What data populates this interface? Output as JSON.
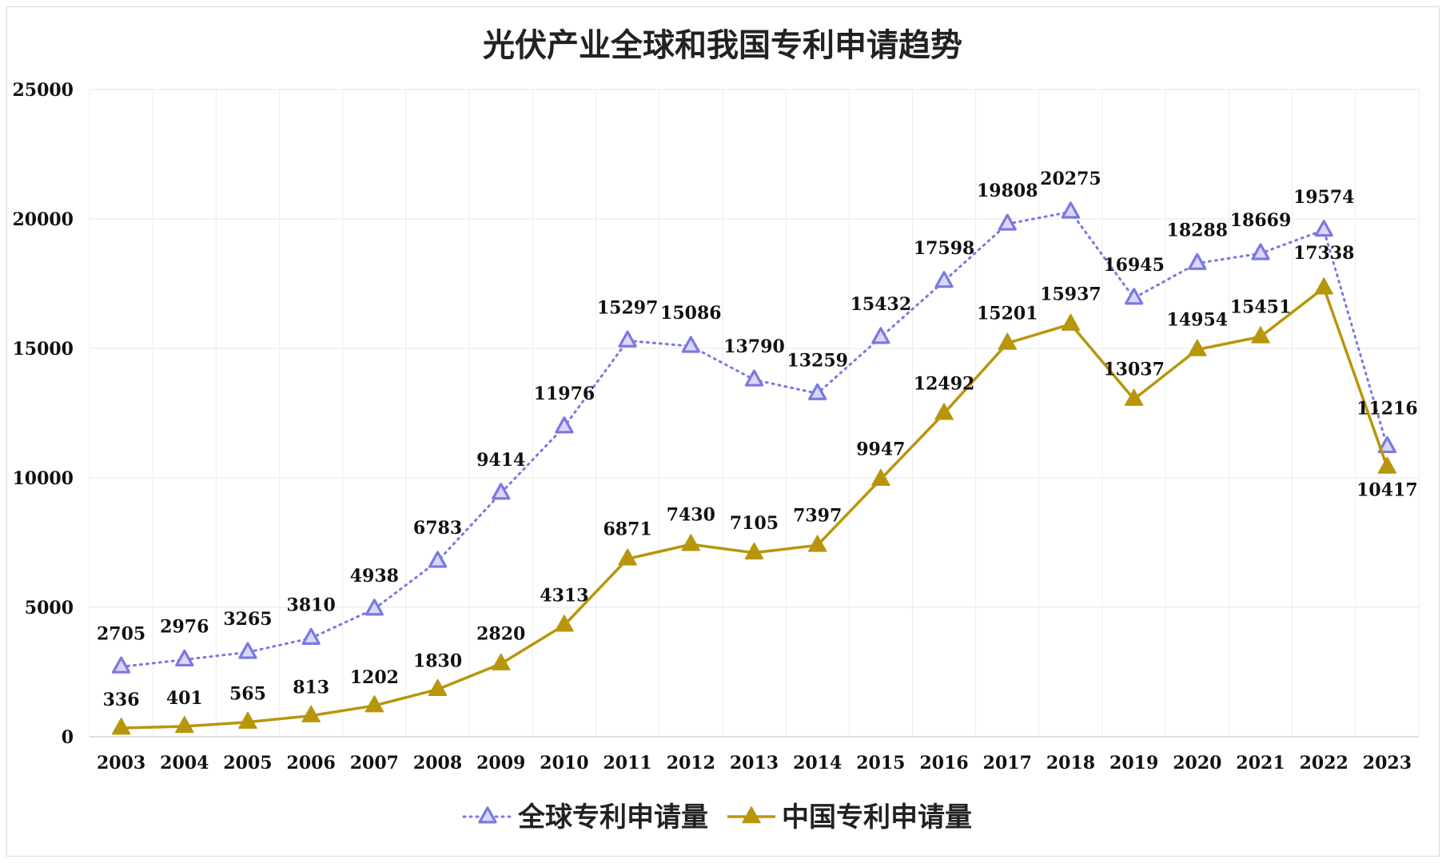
{
  "chart_data": {
    "type": "line",
    "title": "光伏产业全球和我国专利申请趋势",
    "xlabel": "",
    "ylabel": "",
    "categories": [
      "2003",
      "2004",
      "2005",
      "2006",
      "2007",
      "2008",
      "2009",
      "2010",
      "2011",
      "2012",
      "2013",
      "2014",
      "2015",
      "2016",
      "2017",
      "2018",
      "2019",
      "2020",
      "2021",
      "2022",
      "2023"
    ],
    "ylim": [
      0,
      25000
    ],
    "yticks": [
      0,
      5000,
      10000,
      15000,
      20000,
      25000
    ],
    "grid": true,
    "legend_position": "bottom",
    "series": [
      {
        "name": "全球专利申请量",
        "color": "#7b78e0",
        "line_style": "dotted",
        "marker": "hollow-triangle",
        "values": [
          2705,
          2976,
          3265,
          3810,
          4938,
          6783,
          9414,
          11976,
          15297,
          15086,
          13790,
          13259,
          15432,
          17598,
          19808,
          20275,
          16945,
          18288,
          18669,
          19574,
          11216
        ],
        "data_labels": [
          "2705",
          "2976",
          "3265",
          "3810",
          "4938",
          "6783",
          "9414",
          "11976",
          "15297",
          "15086",
          "13790",
          "13259",
          "15432",
          "17598",
          "19808",
          "20275",
          "16945",
          "18288",
          "18669",
          "19574",
          "11216"
        ]
      },
      {
        "name": "中国专利申请量",
        "color": "#b8960c",
        "line_style": "solid",
        "marker": "filled-triangle",
        "values": [
          336,
          401,
          565,
          813,
          1202,
          1830,
          2820,
          4313,
          6871,
          7430,
          7105,
          7397,
          9947,
          12492,
          15201,
          15937,
          13037,
          14954,
          15451,
          17338,
          10417
        ],
        "data_labels": [
          "336",
          "401",
          "565",
          "813",
          "1202",
          "1830",
          "2820",
          "4313",
          "6871",
          "7430",
          "7105",
          "7397",
          "9947",
          "12492",
          "15201",
          "15937",
          "13037",
          "14954",
          "15451",
          "17338",
          "10417"
        ]
      }
    ]
  }
}
